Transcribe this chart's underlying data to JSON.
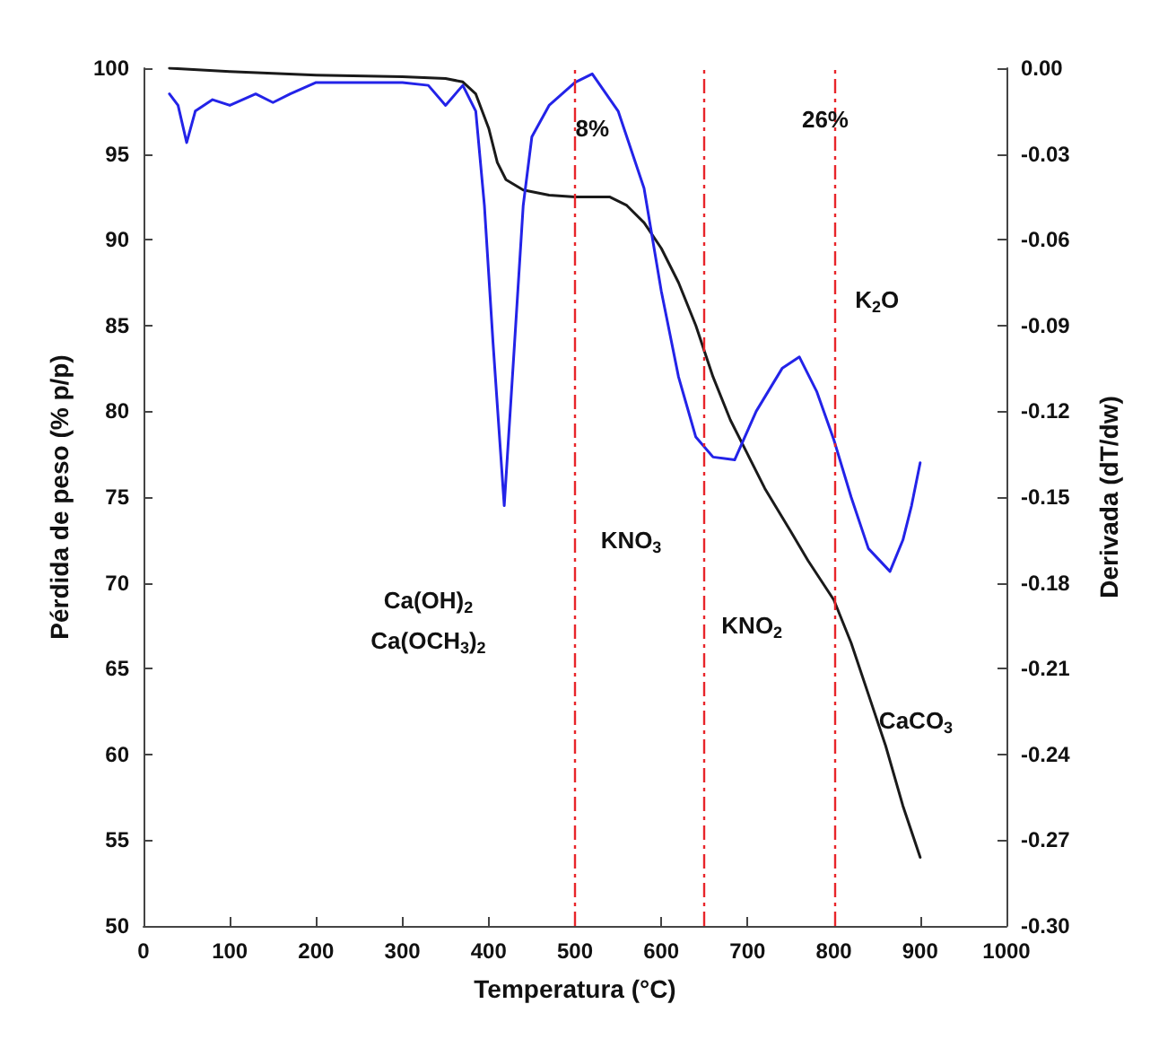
{
  "chart_data": {
    "type": "line",
    "xlabel": "Temperatura (°C)",
    "ylabel": "Pérdida de peso (% p/p)",
    "y2label": "Derivada (dT/dw)",
    "xlim": [
      0,
      1000
    ],
    "xticks": [
      0,
      100,
      200,
      300,
      400,
      500,
      600,
      700,
      800,
      900,
      1000
    ],
    "ylim": [
      50,
      100
    ],
    "yticks": [
      50,
      55,
      60,
      65,
      70,
      75,
      80,
      85,
      90,
      95,
      100
    ],
    "y2lim": [
      -0.3,
      0
    ],
    "y2ticks": [
      {
        "value": -0.3,
        "label": "-0.30"
      },
      {
        "value": -0.27,
        "label": "-0.27"
      },
      {
        "value": -0.24,
        "label": "-0.24"
      },
      {
        "value": -0.21,
        "label": "-0.21"
      },
      {
        "value": -0.18,
        "label": "-0.18"
      },
      {
        "value": -0.15,
        "label": "-0.15"
      },
      {
        "value": -0.12,
        "label": "-0.12"
      },
      {
        "value": -0.09,
        "label": "-0.09"
      },
      {
        "value": -0.06,
        "label": "-0.06"
      },
      {
        "value": -0.03,
        "label": "-0.03"
      },
      {
        "value": 0,
        "label": "0.00"
      }
    ],
    "grid": false,
    "marker": "none",
    "line_style": "solid",
    "series": [
      {
        "color": "#1a1a1a",
        "x": [
          30,
          100,
          200,
          300,
          350,
          370,
          385,
          400,
          410,
          420,
          440,
          470,
          500,
          540,
          560,
          580,
          600,
          620,
          640,
          660,
          680,
          700,
          720,
          750,
          770,
          800,
          820,
          840,
          860,
          880,
          900
        ],
        "values": [
          100,
          99.8,
          99.6,
          99.5,
          99.4,
          99.2,
          98.5,
          96.5,
          94.5,
          93.5,
          92.9,
          92.6,
          92.5,
          92.5,
          92.0,
          91.0,
          89.5,
          87.5,
          85,
          82,
          79.5,
          77.5,
          75.5,
          73,
          71.3,
          69,
          66.5,
          63.5,
          60.5,
          57,
          54
        ]
      },
      {
        "color": "#2323e8",
        "axis": "y2",
        "x": [
          30,
          40,
          50,
          60,
          80,
          100,
          130,
          150,
          170,
          200,
          250,
          300,
          330,
          350,
          370,
          385,
          395,
          405,
          418,
          430,
          440,
          450,
          470,
          500,
          520,
          550,
          580,
          600,
          620,
          640,
          660,
          685,
          710,
          740,
          760,
          780,
          800,
          820,
          840,
          865,
          880,
          890,
          900
        ],
        "values": [
          -0.009,
          -0.013,
          -0.026,
          -0.015,
          -0.011,
          -0.013,
          -0.009,
          -0.012,
          -0.009,
          -0.005,
          -0.005,
          -0.005,
          -0.006,
          -0.013,
          -0.006,
          -0.015,
          -0.048,
          -0.096,
          -0.153,
          -0.096,
          -0.048,
          -0.024,
          -0.013,
          -0.005,
          -0.002,
          -0.015,
          -0.042,
          -0.078,
          -0.108,
          -0.129,
          -0.136,
          -0.137,
          -0.12,
          -0.105,
          -0.101,
          -0.113,
          -0.13,
          -0.15,
          -0.168,
          -0.176,
          -0.165,
          -0.153,
          -0.138
        ]
      }
    ],
    "ref_lines": [
      {
        "axis": "x",
        "value": 500,
        "color": "#e8252a",
        "line_style": "dashed"
      },
      {
        "axis": "x",
        "value": 650,
        "color": "#e8252a",
        "line_style": "dashed"
      },
      {
        "axis": "x",
        "value": 800,
        "color": "#e8252a",
        "line_style": "dashed"
      }
    ],
    "annotations": [
      "8%",
      "26%",
      "Ca(OH)$_{2}$",
      "Ca(OCH$_{3}$)$_{2}$",
      "KNO$_{3}$",
      "KNO$_{2}$",
      "K$_{2}$O",
      "CaCO$_{3}$"
    ]
  }
}
